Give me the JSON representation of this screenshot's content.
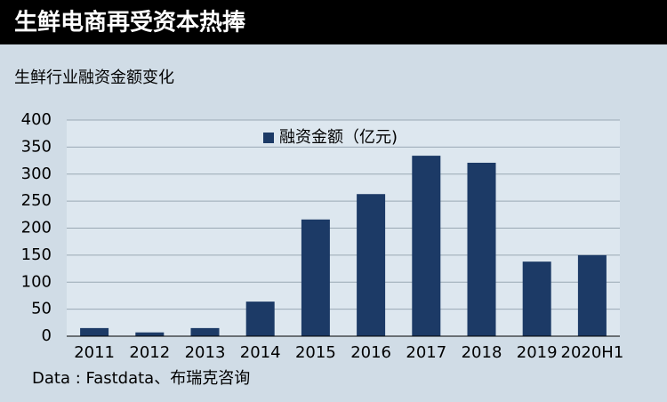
{
  "chart_data": {
    "type": "bar",
    "title": "生鲜电商再受资本热捧",
    "subtitle": "生鲜行业融资金额变化",
    "categories": [
      "2011",
      "2012",
      "2013",
      "2014",
      "2015",
      "2016",
      "2017",
      "2018",
      "2019",
      "2020H1"
    ],
    "series": [
      {
        "name": "融资金额（亿元)",
        "color": "#1c3a66",
        "values": [
          15,
          7,
          15,
          64,
          216,
          263,
          334,
          321,
          138,
          150
        ]
      }
    ],
    "ylim": [
      0,
      400
    ],
    "yticks": [
      0,
      50,
      100,
      150,
      200,
      250,
      300,
      350,
      400
    ],
    "grid": true,
    "legend": "upper center",
    "source": "Data : Fastdata、布瑞克咨询"
  }
}
